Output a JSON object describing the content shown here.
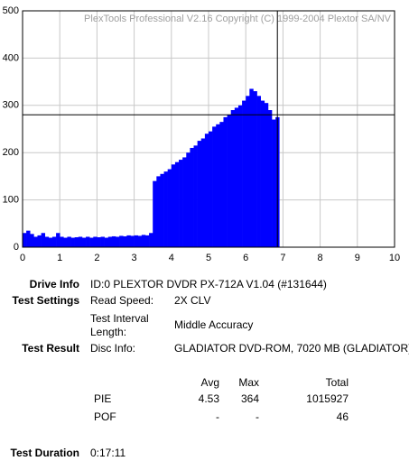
{
  "chart_data": {
    "type": "bar",
    "watermark": "PlexTools Professional V2.16 Copyright (C) 1999-2004 Plextor SA/NV",
    "x": [
      0,
      0.1,
      0.2,
      0.3,
      0.4,
      0.5,
      0.6,
      0.7,
      0.8,
      0.9,
      1.0,
      1.1,
      1.2,
      1.3,
      1.4,
      1.5,
      1.6,
      1.7,
      1.8,
      1.9,
      2.0,
      2.1,
      2.2,
      2.3,
      2.4,
      2.5,
      2.6,
      2.7,
      2.8,
      2.9,
      3.0,
      3.1,
      3.2,
      3.3,
      3.4,
      3.5,
      3.6,
      3.7,
      3.8,
      3.9,
      4.0,
      4.1,
      4.2,
      4.3,
      4.4,
      4.5,
      4.6,
      4.7,
      4.8,
      4.9,
      5.0,
      5.1,
      5.2,
      5.3,
      5.4,
      5.5,
      5.6,
      5.7,
      5.8,
      5.9,
      6.0,
      6.1,
      6.2,
      6.3,
      6.4,
      6.5,
      6.6,
      6.7,
      6.8
    ],
    "values": [
      30,
      35,
      28,
      22,
      25,
      30,
      22,
      20,
      22,
      30,
      22,
      20,
      22,
      20,
      21,
      22,
      20,
      22,
      20,
      22,
      21,
      22,
      20,
      22,
      23,
      22,
      24,
      23,
      25,
      24,
      25,
      24,
      26,
      25,
      30,
      140,
      150,
      155,
      160,
      165,
      175,
      180,
      185,
      190,
      200,
      210,
      215,
      225,
      230,
      240,
      245,
      255,
      260,
      265,
      275,
      280,
      290,
      295,
      300,
      310,
      320,
      335,
      330,
      320,
      310,
      305,
      290,
      270,
      275
    ],
    "bar_width": 0.1,
    "color": "#0000ff",
    "xlim": [
      0,
      10
    ],
    "xticks": [
      0,
      1,
      2,
      3,
      4,
      5,
      6,
      7,
      8,
      9,
      10
    ],
    "ylim": [
      0,
      500
    ],
    "yticks": [
      0,
      100,
      200,
      300,
      400,
      500
    ],
    "grid": true,
    "crosshair": {
      "x": 6.85,
      "y": 280
    }
  },
  "drive_info": {
    "label": "Drive Info",
    "value": "ID:0 PLEXTOR DVDR PX-712A V1.04 (#131644)"
  },
  "test_settings": {
    "label": "Test Settings",
    "items": [
      {
        "name": "Read Speed:",
        "value": "2X CLV"
      },
      {
        "name": "Test Interval Length:",
        "value": "Middle Accuracy"
      }
    ]
  },
  "test_result": {
    "label": "Test Result",
    "name": "Disc Info:",
    "value": "GLADIATOR DVD-ROM, 7020 MB (GLADIATOR)"
  },
  "stats": {
    "headers": [
      "Avg",
      "Max",
      "Total"
    ],
    "rows": [
      {
        "name": "PIE",
        "cells": [
          "4.53",
          "364",
          "1015927"
        ]
      },
      {
        "name": "POF",
        "cells": [
          "-",
          "-",
          "46"
        ]
      }
    ]
  },
  "test_duration": {
    "label": "Test Duration",
    "value": "0:17:11"
  }
}
